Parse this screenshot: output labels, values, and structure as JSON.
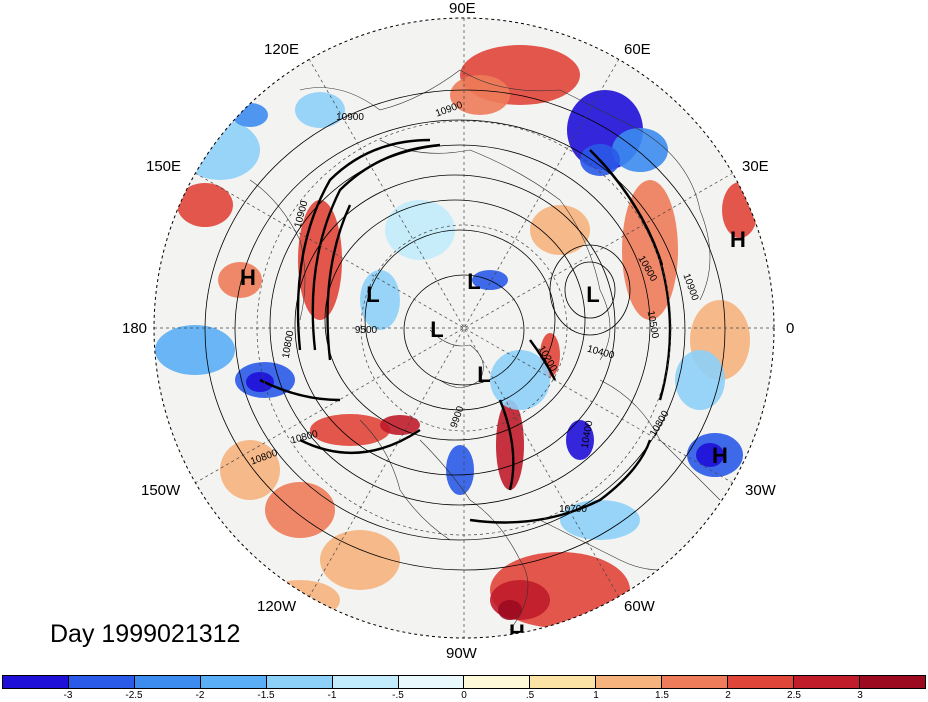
{
  "map": {
    "projection": "polar stereographic (northern hemisphere)",
    "fill_variable_levels": [
      -3,
      -2.5,
      -2,
      -1.5,
      -1,
      -0.5,
      0,
      0.5,
      1,
      1.5,
      2,
      2.5,
      3
    ],
    "longitude_labels": [
      {
        "id": "90E",
        "text": "90E"
      },
      {
        "id": "120E",
        "text": "120E"
      },
      {
        "id": "60E",
        "text": "60E"
      },
      {
        "id": "150E",
        "text": "150E"
      },
      {
        "id": "30E",
        "text": "30E"
      },
      {
        "id": "180",
        "text": "180"
      },
      {
        "id": "0",
        "text": "0"
      },
      {
        "id": "150W",
        "text": "150W"
      },
      {
        "id": "30W",
        "text": "30W"
      },
      {
        "id": "120W",
        "text": "120W"
      },
      {
        "id": "60W",
        "text": "60W"
      },
      {
        "id": "90W",
        "text": "90W"
      }
    ],
    "pressure_markers": [
      {
        "type": "H",
        "text": "H"
      },
      {
        "type": "H",
        "text": "H"
      },
      {
        "type": "H",
        "text": "H"
      },
      {
        "type": "H",
        "text": "H"
      },
      {
        "type": "L",
        "text": "L"
      },
      {
        "type": "L",
        "text": "L"
      },
      {
        "type": "L",
        "text": "L"
      },
      {
        "type": "L",
        "text": "L"
      },
      {
        "type": "L",
        "text": "L"
      }
    ],
    "contour_labels": [
      "10900",
      "10900",
      "10900",
      "10800",
      "10800",
      "10800",
      "10700",
      "10600",
      "10500",
      "10400",
      "10400",
      "10800",
      "9500",
      "9900",
      "10200",
      "10900"
    ]
  },
  "day_label": "Day 1999021312",
  "colorbar": {
    "colors": [
      "#1f10d8",
      "#2a5ae8",
      "#3c8cf0",
      "#5aaef5",
      "#8dd0f8",
      "#c2ecfb",
      "#e8f8fc",
      "#fdf8d8",
      "#fbe3a5",
      "#f6b37e",
      "#ee7c5a",
      "#e0453a",
      "#c01c2a",
      "#9c0a20"
    ],
    "tick_labels": [
      "-3",
      "-2.5",
      "-2",
      "-1.5",
      "-1",
      "-.5",
      "0",
      ".5",
      "1",
      "1.5",
      "2",
      "2.5",
      "3"
    ]
  }
}
